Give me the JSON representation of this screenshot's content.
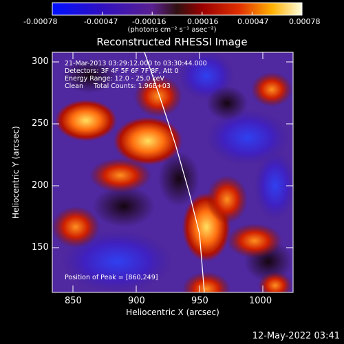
{
  "colorbar": {
    "tick_labels": [
      "-0.00078",
      "-0.00047",
      "-0.00016",
      "0.00016",
      "0.00047",
      "0.00078"
    ],
    "unit_label": "(photons cm⁻² s⁻¹ asec⁻²)"
  },
  "plot": {
    "title": "Reconstructed RHESSI Image",
    "xlabel": "Heliocentric X (arcsec)",
    "ylabel": "Heliocentric Y (arcsec)",
    "x_ticks": [
      "850",
      "900",
      "950",
      "1000"
    ],
    "y_ticks": [
      "150",
      "200",
      "250",
      "300"
    ],
    "xlim": [
      834,
      1024
    ],
    "ylim": [
      113,
      308
    ]
  },
  "annotation": {
    "line1": "21-Mar-2013 03:29:12.000 to 03:30:44.000",
    "line2": "Detectors: 3F 4F 5F 6F 7F 8F, Att 0",
    "line3": "Energy Range: 12.0 - 25.0 keV",
    "line4": "Clean     Total Counts: 1.96E+03",
    "peak": "Position of Peak = [860,249]"
  },
  "footer": {
    "timestamp": "12-May-2022 03:41"
  }
}
